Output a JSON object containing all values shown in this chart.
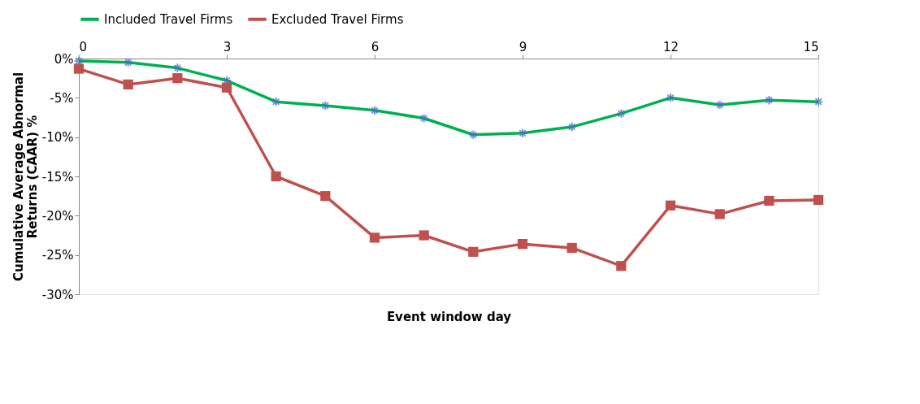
{
  "chart_data": {
    "type": "line",
    "xlabel": "Event window day",
    "ylabel": "Cumulative Average Abnormal Returns (CAAR) %",
    "x": [
      0,
      1,
      2,
      3,
      4,
      5,
      6,
      7,
      8,
      9,
      10,
      11,
      12,
      13,
      14,
      15
    ],
    "xlim": [
      0,
      15
    ],
    "xticks": [
      0,
      3,
      6,
      9,
      12,
      15
    ],
    "ylim": [
      -30,
      0
    ],
    "yticks": [
      {
        "value": 0,
        "label": "0%"
      },
      {
        "value": -5,
        "label": "-5%"
      },
      {
        "value": -10,
        "label": "-10%"
      },
      {
        "value": -15,
        "label": "-15%"
      },
      {
        "value": -20,
        "label": "-20%"
      },
      {
        "value": -25,
        "label": "-25%"
      },
      {
        "value": -30,
        "label": "-30%"
      }
    ],
    "grid": false,
    "legend": "top",
    "line_style": "solid",
    "series": [
      {
        "name": "Included Travel Firms",
        "color": "#00b050",
        "marker": "cross",
        "values": [
          -0.3,
          -0.5,
          -1.2,
          -2.8,
          -5.5,
          -6.0,
          -6.6,
          -7.6,
          -9.7,
          -9.5,
          -8.7,
          -7.0,
          -5.0,
          -5.9,
          -5.3,
          -5.5
        ]
      },
      {
        "name": "Excluded Travel Firms",
        "color": "#c0504d",
        "marker": "square",
        "values": [
          -1.3,
          -3.3,
          -2.5,
          -3.7,
          -15.0,
          -17.5,
          -22.8,
          -22.5,
          -24.6,
          -23.6,
          -24.1,
          -26.4,
          -18.7,
          -19.8,
          -18.1,
          -18.0
        ]
      }
    ]
  }
}
